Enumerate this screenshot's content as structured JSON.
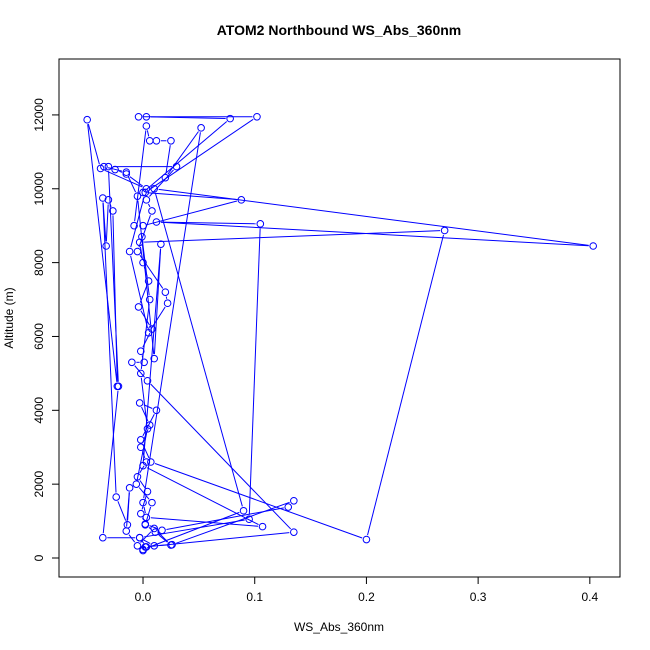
{
  "chart_data": {
    "type": "line",
    "title": "ATOM2 Northbound WS_Abs_360nm",
    "xlabel": "WS_Abs_360nm",
    "ylabel": "Altitude (m)",
    "xlim": [
      -0.06,
      0.41
    ],
    "ylim": [
      0,
      13000
    ],
    "x_ticks": [
      0.0,
      0.1,
      0.2,
      0.3,
      0.4
    ],
    "x_tick_labels": [
      "0.0",
      "0.1",
      "0.2",
      "0.3",
      "0.4"
    ],
    "y_ticks": [
      0,
      2000,
      4000,
      6000,
      8000,
      10000,
      12000
    ],
    "y_tick_labels": [
      "0",
      "2000",
      "4000",
      "6000",
      "8000",
      "10000",
      "12000"
    ],
    "grid": false,
    "legend": "none",
    "markers": "open-circle",
    "series_color": "#0000FF",
    "series": [
      {
        "points": [
          [
            0.0,
            200
          ],
          [
            0.003,
            300
          ],
          [
            -0.003,
            550
          ],
          [
            0.01,
            330
          ],
          [
            0.026,
            360
          ],
          [
            0.135,
            1550
          ],
          [
            0.13,
            1380
          ],
          [
            0.017,
            750
          ],
          [
            0.002,
            920
          ],
          [
            -0.002,
            1200
          ],
          [
            0.004,
            1800
          ],
          [
            -0.005,
            2200
          ],
          [
            0.003,
            2600
          ],
          [
            -0.002,
            3000
          ],
          [
            0.006,
            3600
          ],
          [
            -0.003,
            4200
          ],
          [
            0.012,
            4000
          ],
          [
            -0.002,
            3200
          ],
          [
            0.007,
            2600
          ],
          [
            0.2,
            500
          ],
          [
            0.27,
            8870
          ],
          [
            -0.003,
            8550
          ],
          [
            0.0,
            8000
          ],
          [
            0.005,
            7500
          ],
          [
            -0.004,
            6800
          ],
          [
            0.008,
            6200
          ],
          [
            -0.002,
            5600
          ],
          [
            0.001,
            5300
          ],
          [
            -0.01,
            5300
          ],
          [
            0.004,
            4800
          ],
          [
            0.135,
            700
          ],
          [
            0.002,
            300
          ],
          [
            0.0,
            230
          ],
          [
            0.09,
            1280
          ],
          [
            0.01,
            10000
          ],
          [
            0.403,
            8450
          ],
          [
            0.012,
            9100
          ],
          [
            0.105,
            9050
          ],
          [
            0.095,
            1050
          ],
          [
            -0.003,
            550
          ],
          [
            -0.036,
            550
          ],
          [
            -0.022,
            4650
          ],
          [
            -0.031,
            10600
          ],
          [
            0.03,
            10600
          ],
          [
            0.003,
            9700
          ],
          [
            0.008,
            9400
          ],
          [
            -0.005,
            8300
          ],
          [
            0.02,
            7200
          ],
          [
            0.022,
            6900
          ],
          [
            0.005,
            6100
          ],
          [
            -0.012,
            8300
          ],
          [
            0.002,
            9900
          ],
          [
            0.102,
            11950
          ],
          [
            -0.004,
            11950
          ],
          [
            0.003,
            11950
          ],
          [
            0.078,
            11900
          ],
          [
            0.0,
            9900
          ],
          [
            0.088,
            9700
          ],
          [
            0.0,
            9000
          ],
          [
            -0.008,
            9000
          ],
          [
            0.003,
            11700
          ],
          [
            0.006,
            11300
          ],
          [
            0.012,
            11300
          ],
          [
            0.025,
            11300
          ],
          [
            0.02,
            10300
          ],
          [
            0.052,
            11650
          ],
          [
            0.0,
            1500
          ],
          [
            0.003,
            1100
          ],
          [
            0.107,
            850
          ],
          [
            0.0,
            2500
          ],
          [
            0.016,
            8500
          ],
          [
            0.01,
            5400
          ],
          [
            -0.005,
            9800
          ],
          [
            -0.015,
            10450
          ],
          [
            -0.035,
            10600
          ],
          [
            -0.025,
            10520
          ],
          [
            -0.015,
            10400
          ],
          [
            0.003,
            10000
          ],
          [
            -0.038,
            10550
          ],
          [
            -0.05,
            11870
          ],
          [
            -0.023,
            4650
          ],
          [
            -0.027,
            9400
          ],
          [
            -0.031,
            9700
          ],
          [
            -0.033,
            8450
          ],
          [
            -0.036,
            9750
          ],
          [
            -0.024,
            1650
          ],
          [
            -0.014,
            900
          ],
          [
            -0.012,
            1900
          ],
          [
            -0.015,
            730
          ],
          [
            -0.005,
            330
          ],
          [
            0.01,
            800
          ],
          [
            0.025,
            350
          ],
          [
            0.011,
            700
          ],
          [
            0.002,
            900
          ],
          [
            0.008,
            1500
          ],
          [
            -0.006,
            2000
          ],
          [
            0.004,
            3500
          ],
          [
            -0.002,
            5000
          ],
          [
            0.006,
            7000
          ],
          [
            -0.001,
            8700
          ]
        ]
      }
    ]
  }
}
